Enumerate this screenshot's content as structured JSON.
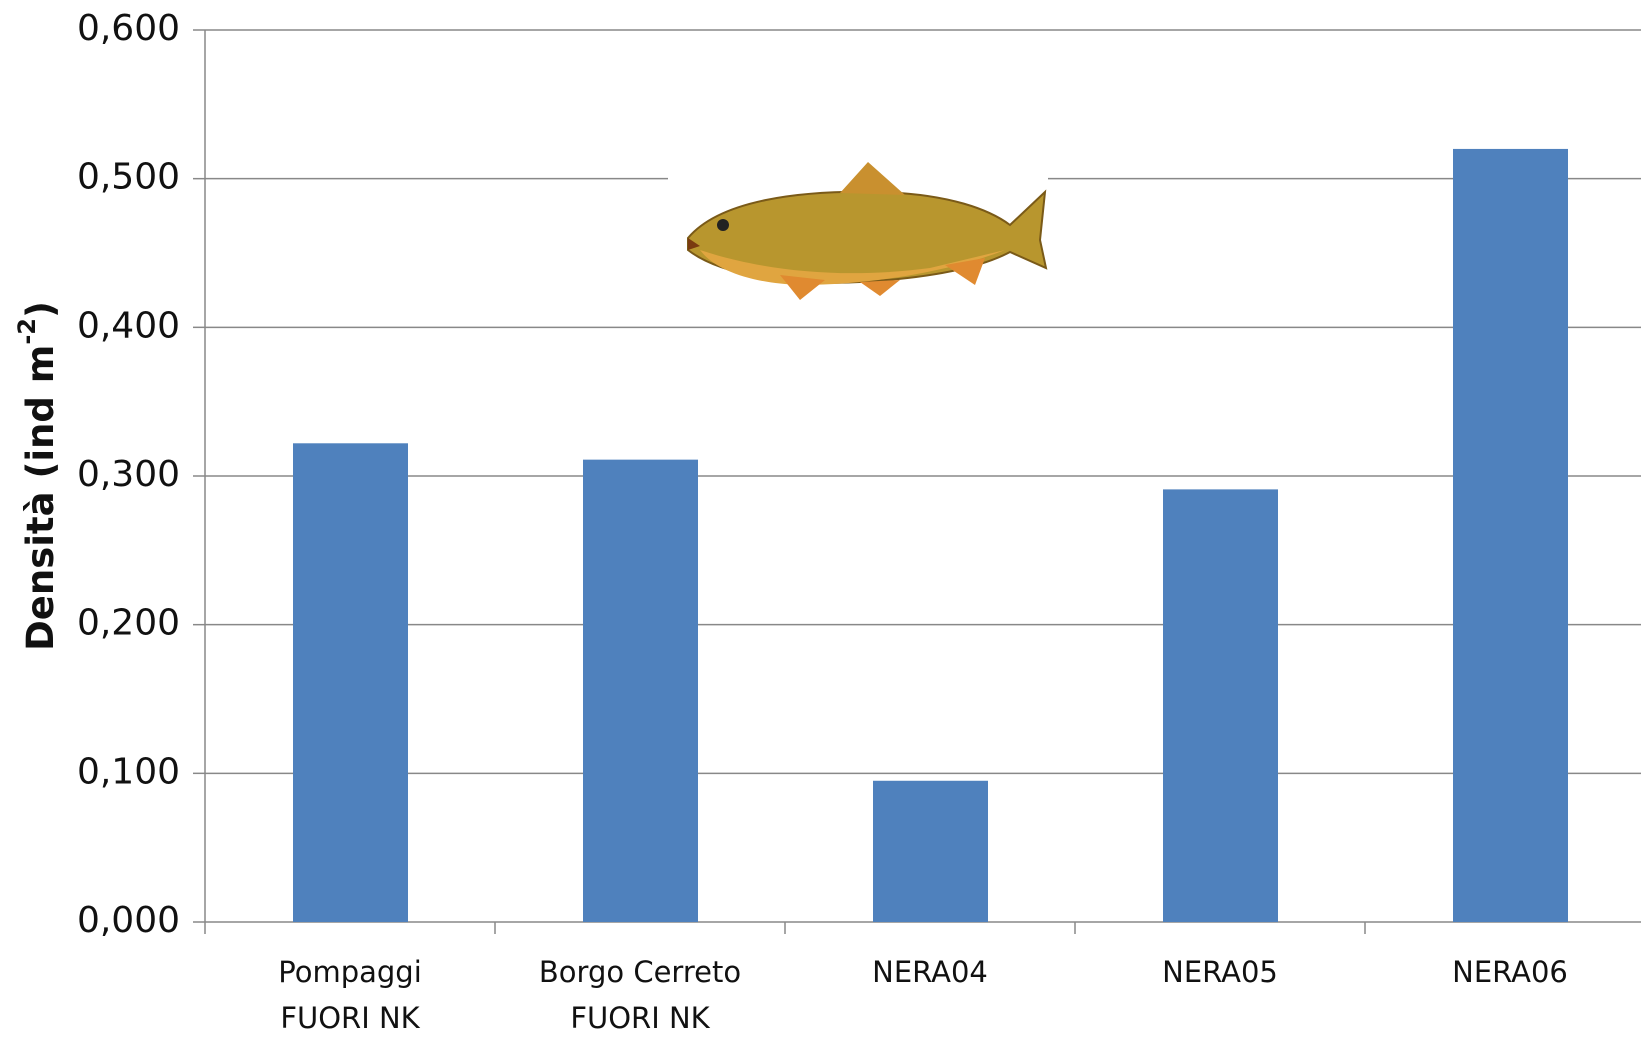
{
  "chart_data": {
    "type": "bar",
    "y_label": {
      "text": "Densità (ind m",
      "superscript": "-2",
      "suffix": ")"
    },
    "categories": [
      [
        "Pompaggi",
        "FUORI  NK"
      ],
      [
        "Borgo Cerreto",
        "FUORI NK"
      ],
      [
        "NERA04"
      ],
      [
        "NERA05"
      ],
      [
        "NERA06"
      ]
    ],
    "values": [
      0.322,
      0.311,
      0.095,
      0.291,
      0.52
    ],
    "color": "#4f81bd",
    "ylim": [
      0,
      0.6
    ],
    "yticks": [
      {
        "value": 0,
        "label": "0,000"
      },
      {
        "value": 0.1,
        "label": "0,100"
      },
      {
        "value": 0.2,
        "label": "0,200"
      },
      {
        "value": 0.3,
        "label": "0,300"
      },
      {
        "value": 0.4,
        "label": "0,400"
      },
      {
        "value": 0.5,
        "label": "0,500"
      },
      {
        "value": 0.6,
        "label": "0,600"
      }
    ],
    "grid": true
  }
}
